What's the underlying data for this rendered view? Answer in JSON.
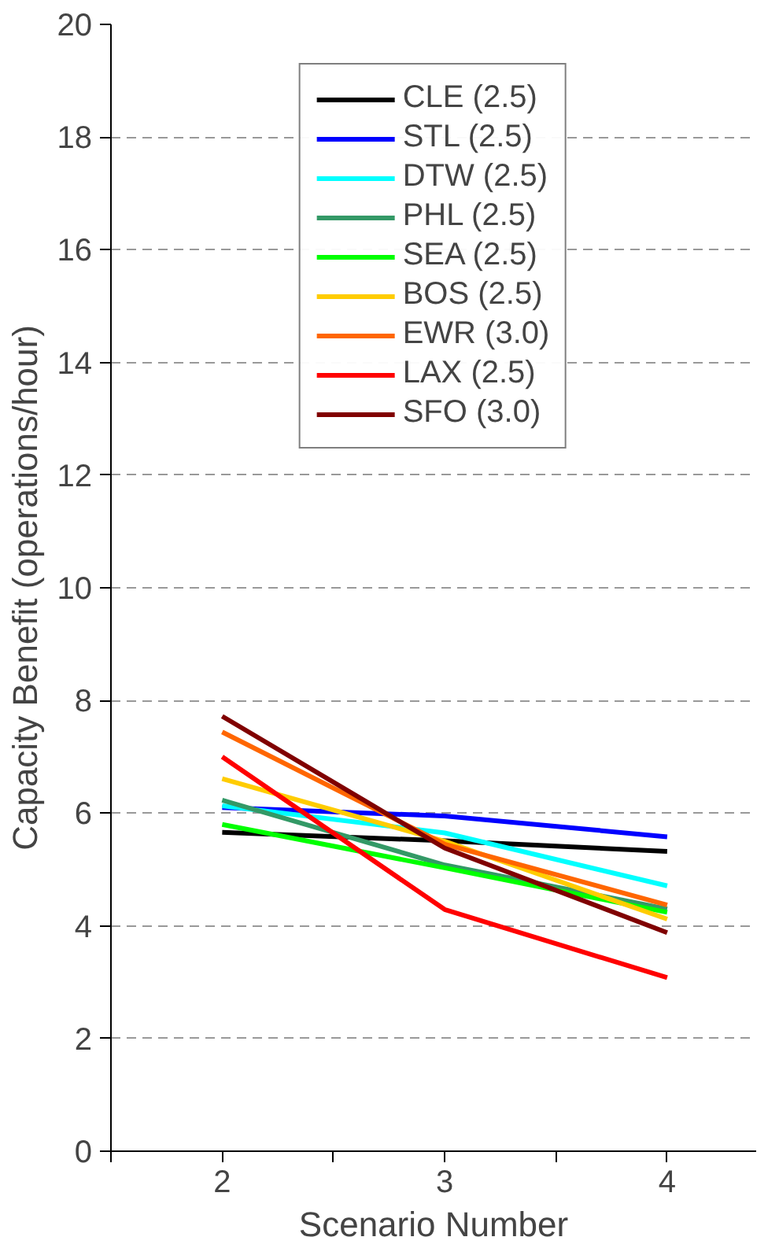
{
  "chart_data": {
    "type": "line",
    "xlabel": "Scenario Number",
    "ylabel": "Capacity Benefit (operations/hour)",
    "x": [
      2,
      3,
      4
    ],
    "xlim": [
      1.5,
      4.4
    ],
    "xticks": [
      {
        "value": 1.5,
        "label": null
      },
      2,
      {
        "value": 2.5,
        "label": null
      },
      3,
      {
        "value": 3.5,
        "label": null
      },
      4
    ],
    "ylim": [
      0,
      20
    ],
    "yticks": [
      0,
      2,
      4,
      6,
      8,
      10,
      12,
      14,
      16,
      18,
      20
    ],
    "grid": "y",
    "legend": "top",
    "line_style": "solid",
    "marker": "none",
    "series": [
      {
        "name": "CLE (2.5)",
        "color": "#000000",
        "values": [
          5.66,
          5.51,
          5.32
        ]
      },
      {
        "name": "STL (2.5)",
        "color": "#0000ff",
        "values": [
          6.1,
          5.95,
          5.58
        ]
      },
      {
        "name": "DTW (2.5)",
        "color": "#00ffff",
        "values": [
          6.13,
          5.65,
          4.71
        ]
      },
      {
        "name": "PHL (2.5)",
        "color": "#339966",
        "values": [
          6.23,
          5.08,
          4.3
        ]
      },
      {
        "name": "SEA (2.5)",
        "color": "#00ff00",
        "values": [
          5.8,
          5.03,
          4.24
        ]
      },
      {
        "name": "BOS (2.5)",
        "color": "#ffcc00",
        "values": [
          6.61,
          5.5,
          4.12
        ]
      },
      {
        "name": "EWR (3.0)",
        "color": "#ff6600",
        "values": [
          7.44,
          5.45,
          4.37
        ]
      },
      {
        "name": "LAX (2.5)",
        "color": "#ff0000",
        "values": [
          7.0,
          4.29,
          3.08
        ]
      },
      {
        "name": "SFO (3.0)",
        "color": "#800000",
        "values": [
          7.72,
          5.38,
          3.88
        ]
      }
    ]
  }
}
